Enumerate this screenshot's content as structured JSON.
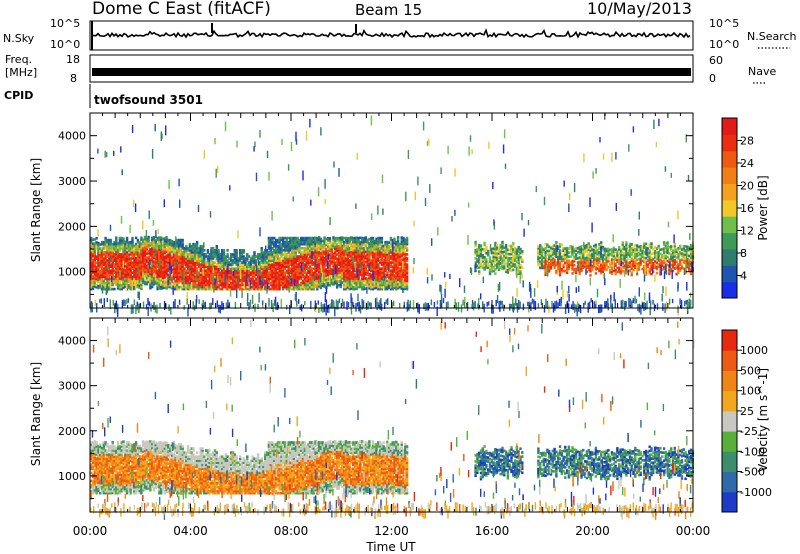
{
  "header": {
    "station": "Dome C East (fitACF)",
    "beam": "Beam 15",
    "date": "10/May/2013"
  },
  "strips": {
    "nsky_label": "N.Sky",
    "nsearch_label": "N.Search",
    "nsky_top": "10^5",
    "nsky_bottom": "10^0",
    "nsearch_top": "10^5",
    "nsearch_bottom": "10^0",
    "freq_label": "Freq.",
    "freq_unit": "[MHz]",
    "freq_top": "18",
    "freq_bottom": "8",
    "nave_label": "Nave",
    "nave_top": "60",
    "nave_bottom": "0",
    "cpid_label": "CPID",
    "cpid_value": "twofsound 3501"
  },
  "chart_data": [
    {
      "type": "heatmap",
      "title": "",
      "panel": "power",
      "ylabel": "Slant Range [km]",
      "ylim": [
        200,
        4500
      ],
      "yticks": [
        "1000",
        "2000",
        "3000",
        "4000"
      ],
      "xlim": [
        "00:00",
        "24:00"
      ],
      "colorbar": {
        "label": "Power [dB]",
        "ticks": [
          "4",
          "8",
          "12",
          "16",
          "20",
          "24",
          "28"
        ],
        "colors": [
          "#1a2ee6",
          "#1f55b0",
          "#2e7d6e",
          "#3f9a55",
          "#6fc04a",
          "#f0c82a",
          "#f2a21e",
          "#f08016",
          "#ee5a12",
          "#ea2f10",
          "#e31a1a"
        ]
      },
      "regions": [
        {
          "x": [
            0.0,
            12.6
          ],
          "y": [
            600,
            1750
          ],
          "level": "high"
        },
        {
          "x": [
            15.3,
            24.0
          ],
          "y": [
            900,
            1500
          ],
          "level": "mixed"
        },
        {
          "x": [
            0.0,
            24.0
          ],
          "y": [
            200,
            4500
          ],
          "level": "sparse"
        }
      ]
    },
    {
      "type": "heatmap",
      "title": "",
      "panel": "velocity",
      "ylabel": "Slant Range [km]",
      "ylim": [
        200,
        4500
      ],
      "yticks": [
        "1000",
        "2000",
        "3000",
        "4000"
      ],
      "xlim": [
        "00:00",
        "24:00"
      ],
      "xticks": [
        "00:00",
        "04:00",
        "08:00",
        "12:00",
        "16:00",
        "20:00",
        "00:00"
      ],
      "xlabel": "Time UT",
      "colorbar": {
        "label": "Velocity [m s^-1]",
        "ticks": [
          "1000",
          "500",
          "100",
          "25",
          "-25",
          "-100",
          "-500",
          "-1000"
        ],
        "colors": [
          "#1c3cc8",
          "#2e6aa8",
          "#3d8c6e",
          "#58b03c",
          "#c8c8c0",
          "#f2a81e",
          "#f08418",
          "#ec5a14",
          "#e62a10"
        ]
      },
      "regions": [
        {
          "x": [
            0.0,
            12.6
          ],
          "y": [
            600,
            1750
          ],
          "level": "negative"
        },
        {
          "x": [
            15.3,
            24.0
          ],
          "y": [
            900,
            1500
          ],
          "level": "positive"
        },
        {
          "x": [
            0.0,
            24.0
          ],
          "y": [
            200,
            4500
          ],
          "level": "sparse"
        }
      ]
    }
  ]
}
